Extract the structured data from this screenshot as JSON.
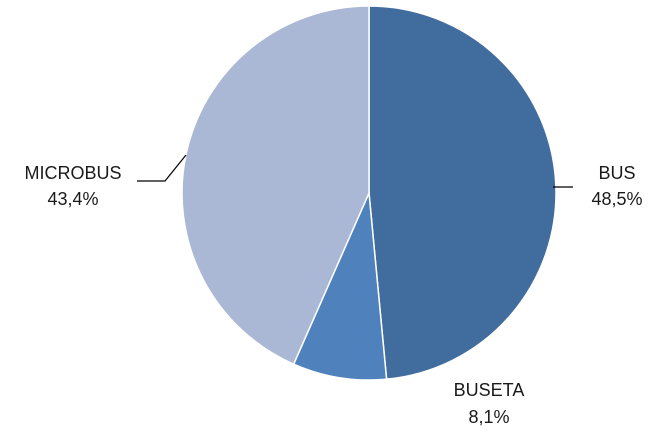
{
  "chart_data": {
    "type": "pie",
    "title": "",
    "slices": [
      {
        "label": "BUS",
        "value": 48.5,
        "value_text": "48,5%",
        "color": "#416c9e"
      },
      {
        "label": "BUSETA",
        "value": 8.1,
        "value_text": "8,1%",
        "color": "#4f81bd"
      },
      {
        "label": "MICROBUS",
        "value": 43.4,
        "value_text": "43,4%",
        "color": "#aab8d6"
      }
    ],
    "start": "12 o'clock",
    "direction": "clockwise",
    "legend": "none",
    "data_labels": "outside with leader lines"
  }
}
